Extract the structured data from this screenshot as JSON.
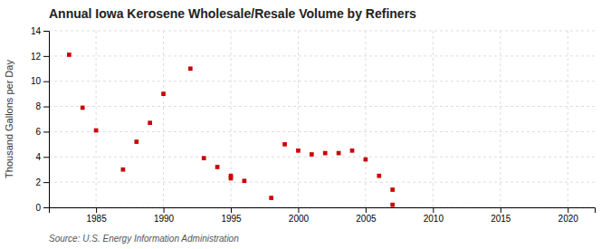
{
  "chart_data": {
    "type": "scatter",
    "title": "Annual Iowa Kerosene Wholesale/Resale Volume by Refiners",
    "ylabel": "Thousand Gallons per Day",
    "annotation": "Source: U.S. Energy Information Administration",
    "x": [
      1983,
      1984,
      1985,
      1987,
      1988,
      1989,
      1990,
      1992,
      1993,
      1994,
      1995,
      1995,
      1996,
      1998,
      1999,
      2000,
      2001,
      2002,
      2003,
      2004,
      2005,
      2006,
      2007,
      2007
    ],
    "values": [
      12.1,
      7.9,
      6.1,
      3.0,
      5.2,
      6.7,
      9.0,
      11.0,
      3.9,
      3.2,
      2.5,
      2.3,
      2.1,
      0.75,
      5.0,
      4.5,
      4.2,
      4.3,
      4.3,
      4.5,
      3.8,
      2.5,
      1.4,
      0.2
    ],
    "color": "#cc0000",
    "marker": "square",
    "xlim": [
      1981.5,
      2022
    ],
    "ylim": [
      0,
      14
    ],
    "xticks": [
      1985,
      1990,
      1995,
      2000,
      2005,
      2010,
      2015,
      2020
    ],
    "yticks": [
      0,
      2,
      4,
      6,
      8,
      10,
      12,
      14
    ],
    "grid": true
  }
}
